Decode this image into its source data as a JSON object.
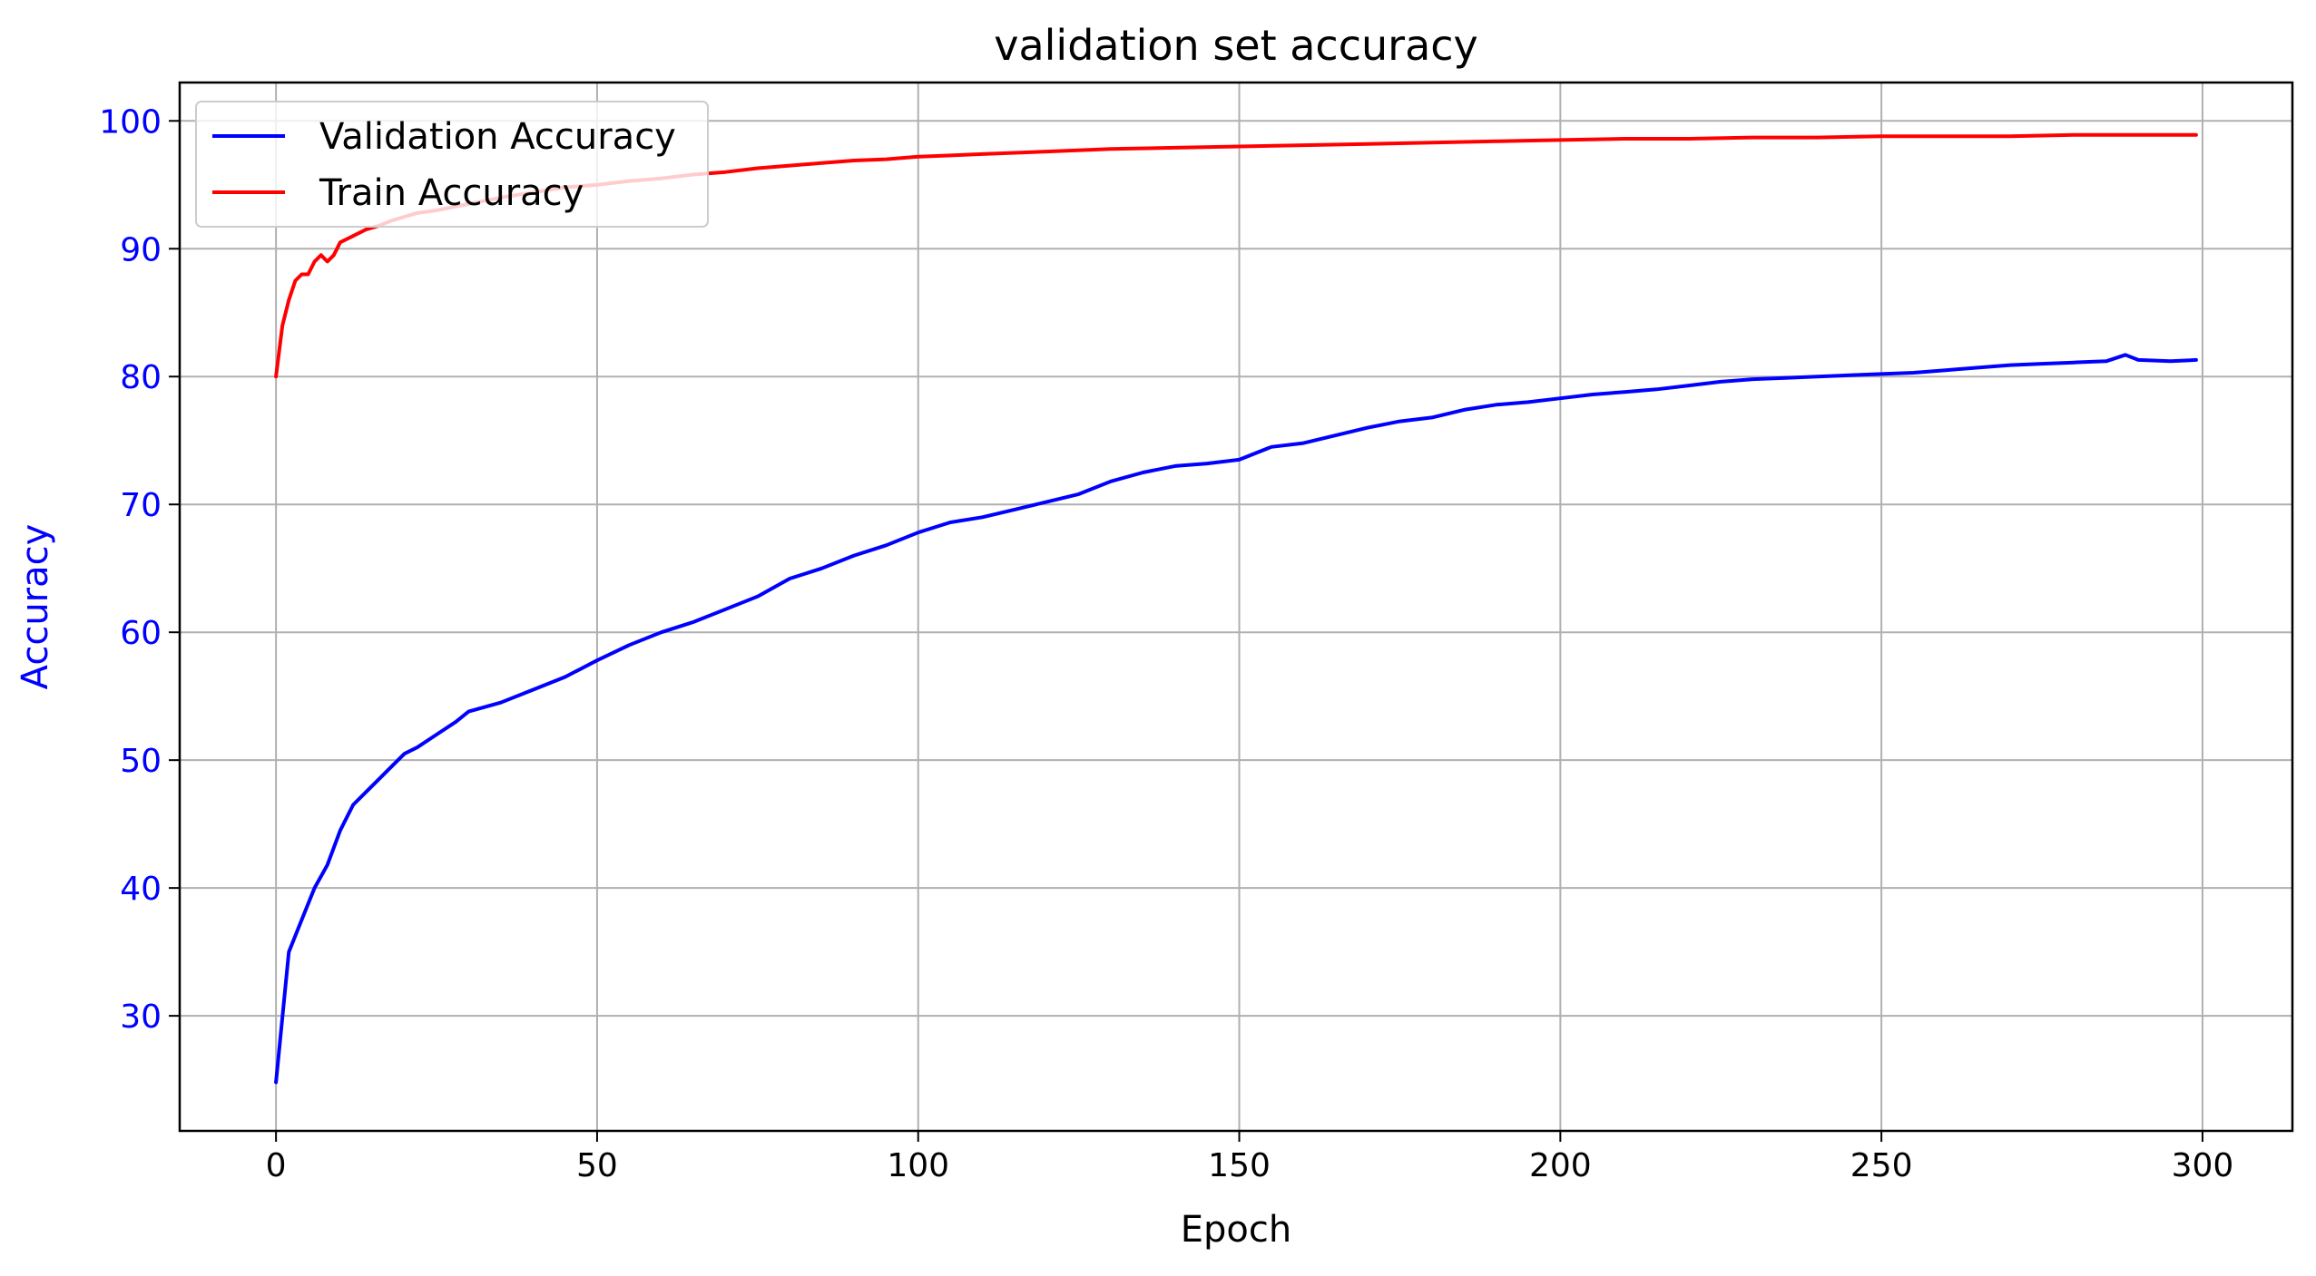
{
  "chart_data": {
    "type": "line",
    "title": "validation set accuracy",
    "xlabel": "Epoch",
    "ylabel": "Accuracy",
    "xlim": [
      -15,
      314
    ],
    "ylim": [
      21,
      103
    ],
    "x_ticks": [
      0,
      50,
      100,
      150,
      200,
      250,
      300
    ],
    "y_ticks": [
      30,
      40,
      50,
      60,
      70,
      80,
      90,
      100
    ],
    "grid": true,
    "legend_position": "top-left",
    "ylabel_color": "#0000ff",
    "ytick_color": "#0000ff",
    "series": [
      {
        "name": "Validation Accuracy",
        "color": "#0000ff",
        "x": [
          0,
          2,
          4,
          6,
          8,
          10,
          12,
          14,
          16,
          18,
          20,
          22,
          25,
          28,
          30,
          35,
          40,
          45,
          50,
          55,
          60,
          65,
          70,
          75,
          80,
          85,
          90,
          95,
          100,
          105,
          110,
          115,
          120,
          125,
          130,
          135,
          140,
          145,
          150,
          155,
          160,
          165,
          170,
          175,
          180,
          185,
          190,
          195,
          200,
          205,
          210,
          215,
          220,
          225,
          230,
          235,
          240,
          245,
          250,
          255,
          260,
          265,
          270,
          275,
          280,
          285,
          288,
          290,
          295,
          299
        ],
        "y": [
          24.8,
          35.0,
          37.5,
          40.0,
          41.8,
          44.5,
          46.5,
          47.5,
          48.5,
          49.5,
          50.5,
          51.0,
          52.0,
          53.0,
          53.8,
          54.5,
          55.5,
          56.5,
          57.8,
          59.0,
          60.0,
          60.8,
          61.8,
          62.8,
          64.2,
          65.0,
          66.0,
          66.8,
          67.8,
          68.6,
          69.0,
          69.6,
          70.2,
          70.8,
          71.8,
          72.5,
          73.0,
          73.2,
          73.5,
          74.5,
          74.8,
          75.4,
          76.0,
          76.5,
          76.8,
          77.4,
          77.8,
          78.0,
          78.3,
          78.6,
          78.8,
          79.0,
          79.3,
          79.6,
          79.8,
          79.9,
          80.0,
          80.1,
          80.2,
          80.3,
          80.5,
          80.7,
          80.9,
          81.0,
          81.1,
          81.2,
          81.7,
          81.3,
          81.2,
          81.3
        ]
      },
      {
        "name": "Train Accuracy",
        "color": "#ff0000",
        "x": [
          0,
          1,
          2,
          3,
          4,
          5,
          6,
          7,
          8,
          9,
          10,
          12,
          14,
          16,
          18,
          20,
          22,
          25,
          28,
          30,
          35,
          40,
          45,
          50,
          55,
          60,
          65,
          70,
          75,
          80,
          85,
          90,
          95,
          100,
          105,
          110,
          120,
          130,
          140,
          150,
          160,
          170,
          180,
          190,
          200,
          210,
          220,
          230,
          240,
          250,
          260,
          270,
          280,
          290,
          299
        ],
        "y": [
          80.0,
          84.0,
          86.0,
          87.5,
          88.0,
          88.0,
          89.0,
          89.5,
          89.0,
          89.5,
          90.5,
          91.0,
          91.5,
          91.8,
          92.2,
          92.5,
          92.8,
          93.0,
          93.3,
          93.5,
          94.0,
          94.4,
          94.8,
          95.0,
          95.3,
          95.5,
          95.8,
          96.0,
          96.3,
          96.5,
          96.7,
          96.9,
          97.0,
          97.2,
          97.3,
          97.4,
          97.6,
          97.8,
          97.9,
          98.0,
          98.1,
          98.2,
          98.3,
          98.4,
          98.5,
          98.6,
          98.6,
          98.7,
          98.7,
          98.8,
          98.8,
          98.8,
          98.9,
          98.9,
          98.9
        ]
      }
    ]
  }
}
